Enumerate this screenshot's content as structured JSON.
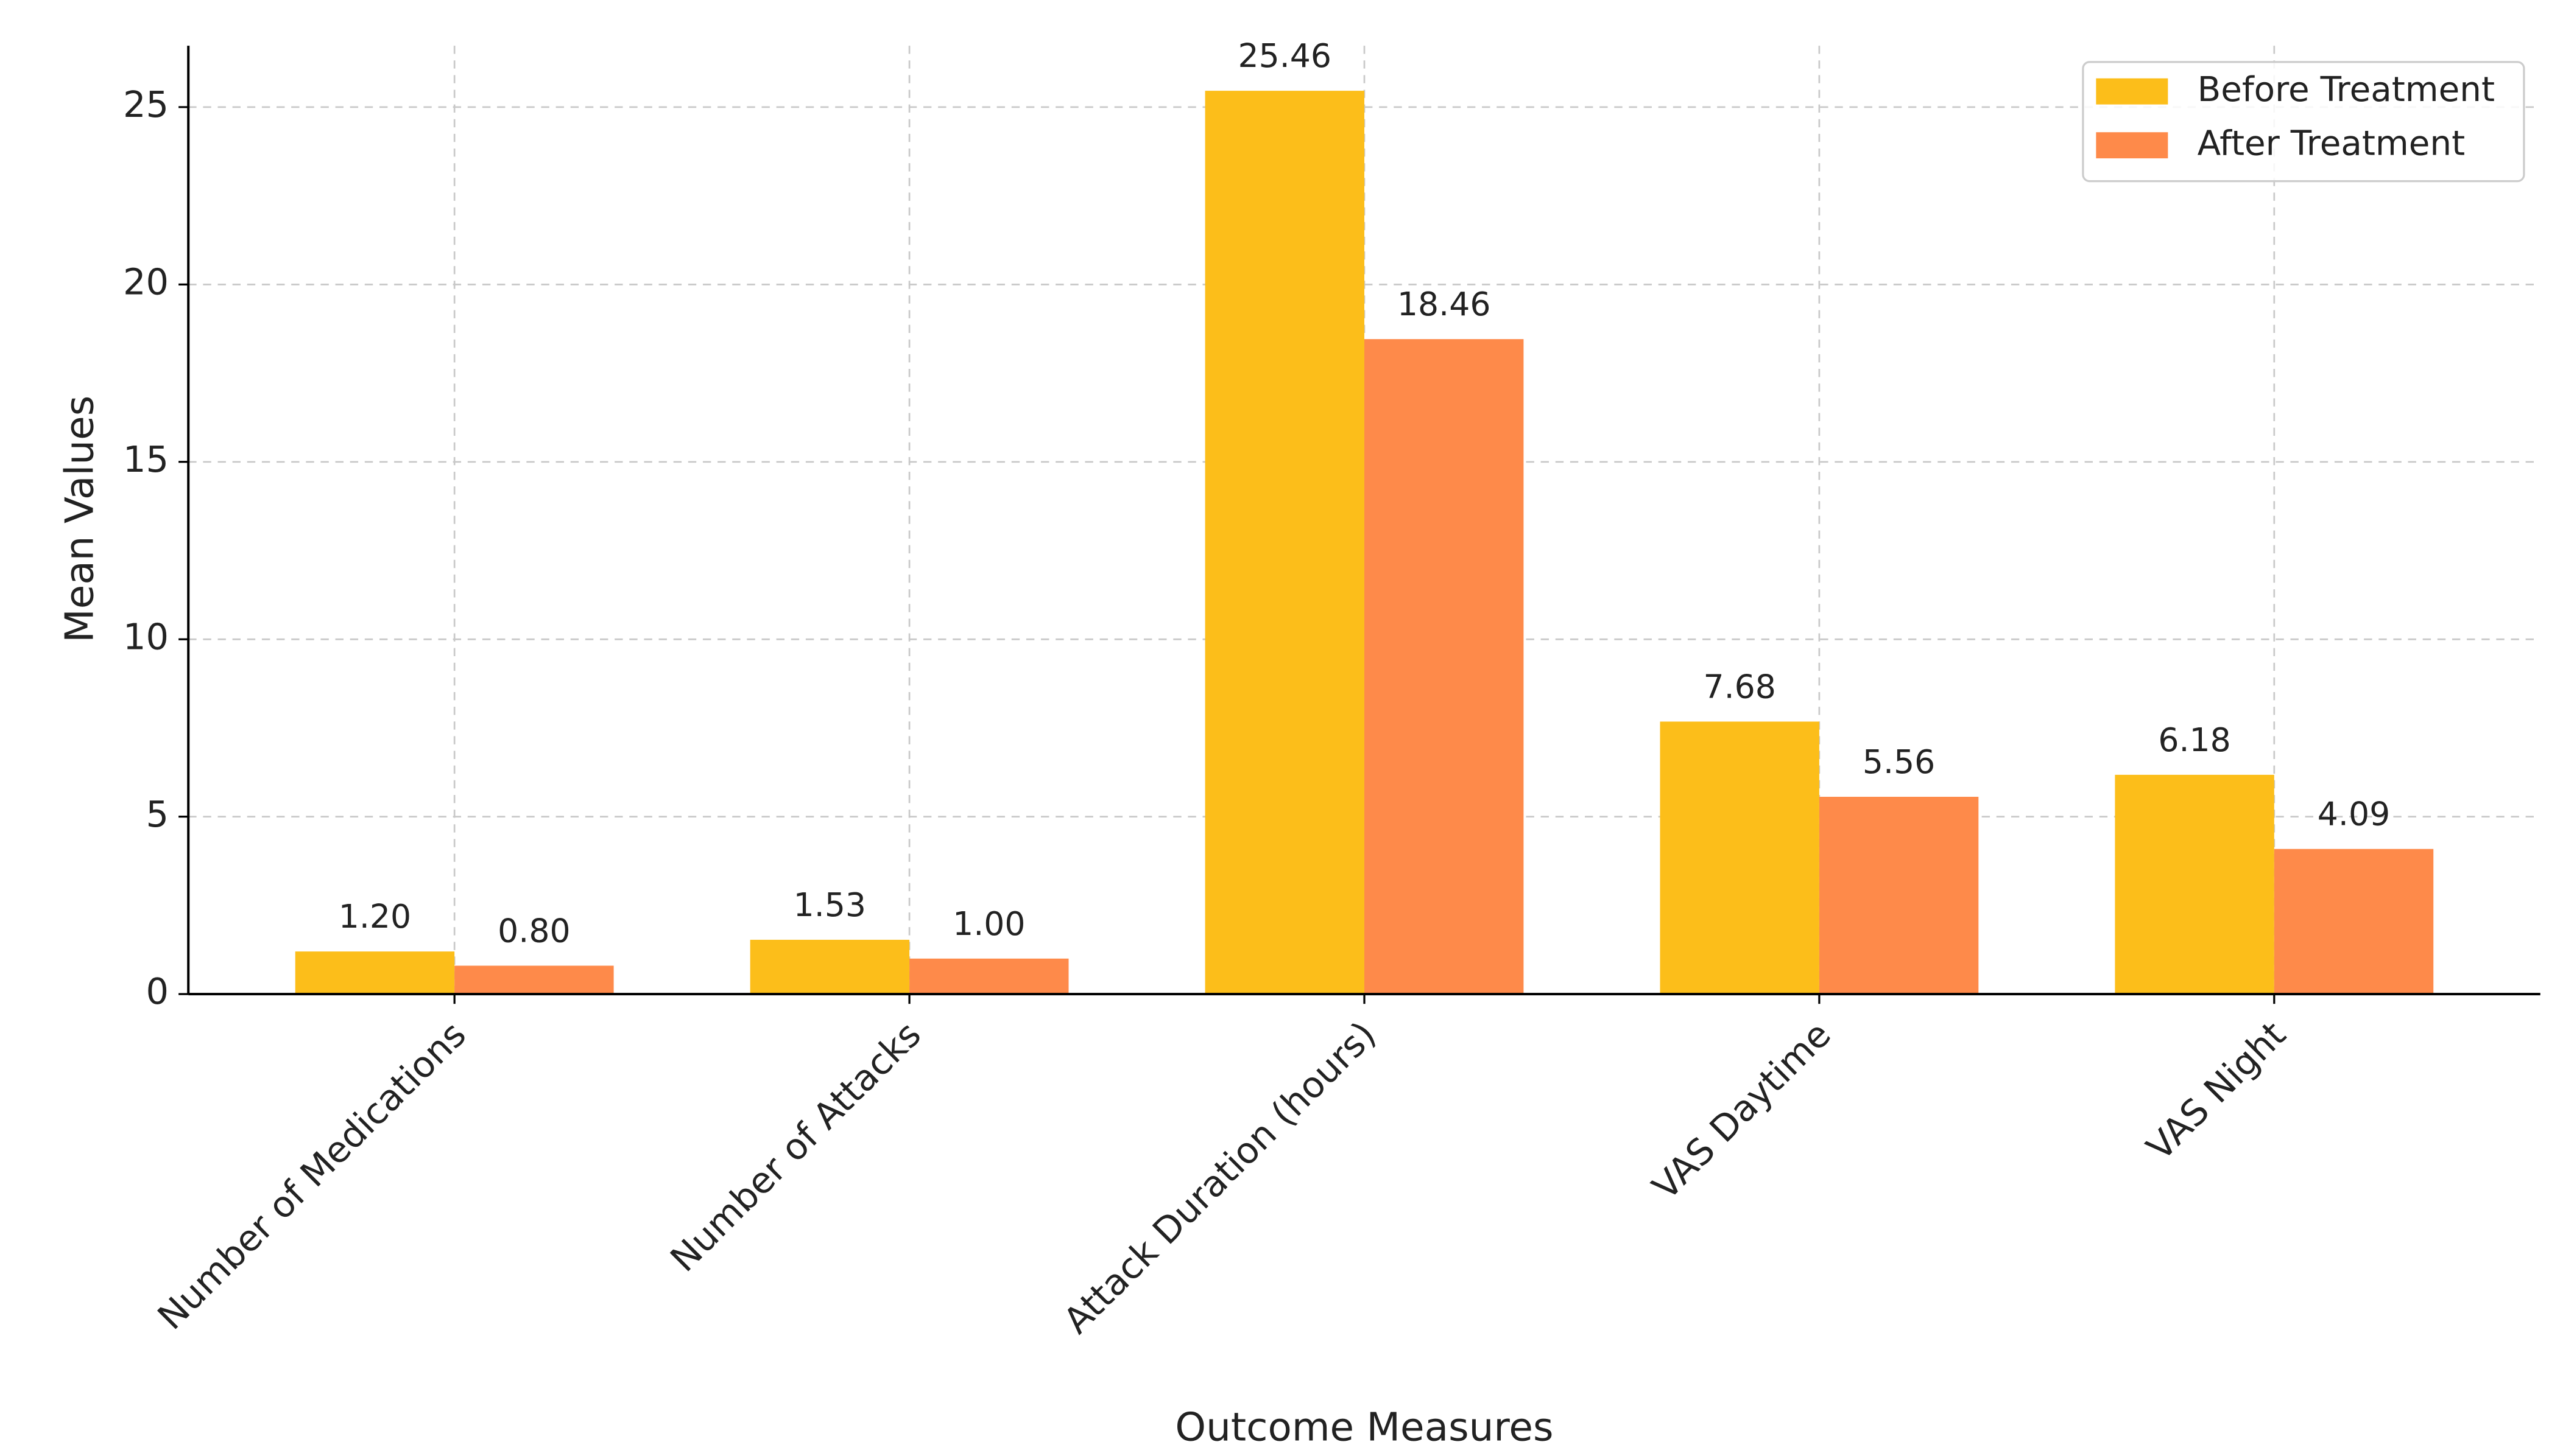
{
  "chart_data": {
    "type": "bar",
    "xlabel": "Outcome Measures",
    "ylabel": "Mean Values",
    "categories": [
      "Number of Medications",
      "Number of Attacks",
      "Attack Duration (hours)",
      "VAS Daytime",
      "VAS Night"
    ],
    "series": [
      {
        "name": "Before Treatment",
        "color": "#fcbe1a",
        "values": [
          1.2,
          1.53,
          25.46,
          7.68,
          6.18
        ],
        "value_labels": [
          "1.20",
          "1.53",
          "25.46",
          "7.68",
          "6.18"
        ]
      },
      {
        "name": "After Treatment",
        "color": "#fe8a4a",
        "values": [
          0.8,
          1.0,
          18.46,
          5.56,
          4.09
        ],
        "value_labels": [
          "0.80",
          "1.00",
          "18.46",
          "5.56",
          "4.09"
        ]
      }
    ],
    "ylim": [
      0,
      26.73
    ],
    "yticks": [
      0,
      5,
      10,
      15,
      20,
      25
    ],
    "grid": true,
    "legend": "upper right"
  }
}
